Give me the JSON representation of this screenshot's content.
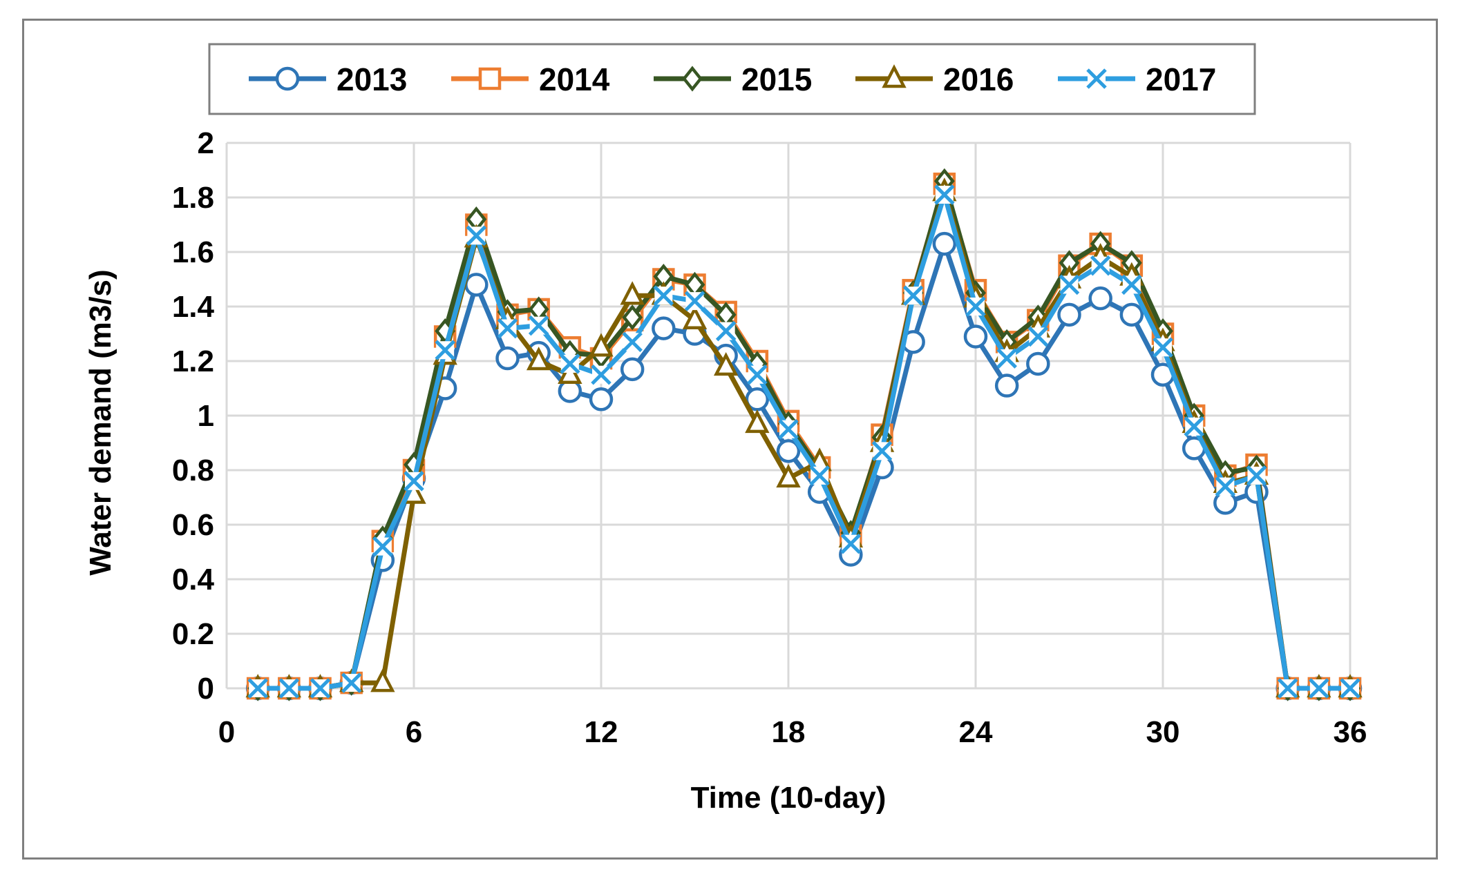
{
  "chart_data": {
    "type": "line",
    "title": "",
    "xlabel": "Time (10-day)",
    "ylabel": "Water demand (m3/s)",
    "xlim": [
      0,
      36
    ],
    "ylim": [
      0,
      2
    ],
    "xticks": [
      0,
      6,
      12,
      18,
      24,
      30,
      36
    ],
    "yticks": [
      0,
      0.2,
      0.4,
      0.6,
      0.8,
      1,
      1.2,
      1.4,
      1.6,
      1.8,
      2
    ],
    "grid": true,
    "legend_position": "top",
    "x": [
      1,
      2,
      3,
      4,
      5,
      6,
      7,
      8,
      9,
      10,
      11,
      12,
      13,
      14,
      15,
      16,
      17,
      18,
      19,
      20,
      21,
      22,
      23,
      24,
      25,
      26,
      27,
      28,
      29,
      30,
      31,
      32,
      33,
      34,
      35,
      36
    ],
    "series": [
      {
        "name": "2013",
        "color": "#2e75b6",
        "marker": "circle",
        "values": [
          0,
          0,
          0,
          0.02,
          0.47,
          0.77,
          1.1,
          1.48,
          1.21,
          1.23,
          1.09,
          1.06,
          1.17,
          1.32,
          1.3,
          1.22,
          1.06,
          0.87,
          0.72,
          0.49,
          0.81,
          1.27,
          1.63,
          1.29,
          1.11,
          1.19,
          1.37,
          1.43,
          1.37,
          1.15,
          0.88,
          0.68,
          0.72,
          0,
          0,
          0
        ]
      },
      {
        "name": "2014",
        "color": "#ed7d31",
        "marker": "square",
        "values": [
          0,
          0,
          0,
          0.02,
          0.54,
          0.8,
          1.29,
          1.7,
          1.37,
          1.39,
          1.25,
          1.21,
          1.35,
          1.5,
          1.48,
          1.38,
          1.2,
          0.98,
          0.81,
          0.56,
          0.93,
          1.46,
          1.85,
          1.46,
          1.27,
          1.35,
          1.55,
          1.63,
          1.55,
          1.3,
          1.0,
          0.78,
          0.82,
          0,
          0,
          0
        ]
      },
      {
        "name": "2015",
        "color": "#375623",
        "marker": "diamond",
        "values": [
          0,
          0,
          0,
          0.02,
          0.55,
          0.82,
          1.31,
          1.72,
          1.38,
          1.39,
          1.23,
          1.22,
          1.36,
          1.51,
          1.48,
          1.37,
          1.19,
          0.97,
          0.8,
          0.57,
          0.92,
          1.45,
          1.86,
          1.45,
          1.27,
          1.36,
          1.56,
          1.63,
          1.56,
          1.31,
          1.0,
          0.79,
          0.81,
          0,
          0,
          0
        ]
      },
      {
        "name": "2016",
        "color": "#7f6000",
        "marker": "triangle",
        "values": [
          0,
          0,
          0,
          0.02,
          0.02,
          0.71,
          1.22,
          1.65,
          1.35,
          1.2,
          1.15,
          1.25,
          1.44,
          1.44,
          1.35,
          1.18,
          0.97,
          0.77,
          0.83,
          0.55,
          0.9,
          1.44,
          1.82,
          1.43,
          1.23,
          1.32,
          1.5,
          1.58,
          1.51,
          1.27,
          0.97,
          0.75,
          0.78,
          0,
          0,
          0
        ]
      },
      {
        "name": "2017",
        "color": "#2e9ee0",
        "marker": "x",
        "values": [
          0,
          0,
          0,
          0.02,
          0.52,
          0.76,
          1.24,
          1.66,
          1.32,
          1.33,
          1.19,
          1.15,
          1.27,
          1.44,
          1.42,
          1.31,
          1.15,
          0.95,
          0.78,
          0.53,
          0.87,
          1.44,
          1.81,
          1.4,
          1.21,
          1.29,
          1.48,
          1.55,
          1.48,
          1.25,
          0.96,
          0.74,
          0.78,
          0,
          0,
          0
        ]
      }
    ]
  }
}
